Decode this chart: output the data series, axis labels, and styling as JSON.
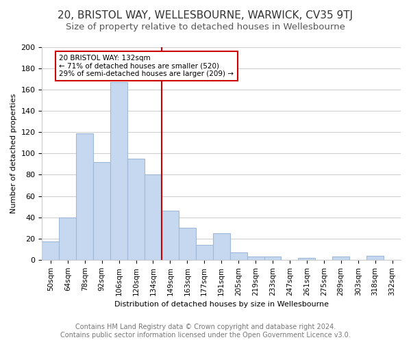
{
  "title": "20, BRISTOL WAY, WELLESBOURNE, WARWICK, CV35 9TJ",
  "subtitle": "Size of property relative to detached houses in Wellesbourne",
  "xlabel": "Distribution of detached houses by size in Wellesbourne",
  "ylabel": "Number of detached properties",
  "bar_labels": [
    "50sqm",
    "64sqm",
    "78sqm",
    "92sqm",
    "106sqm",
    "120sqm",
    "134sqm",
    "149sqm",
    "163sqm",
    "177sqm",
    "191sqm",
    "205sqm",
    "219sqm",
    "233sqm",
    "247sqm",
    "261sqm",
    "275sqm",
    "289sqm",
    "303sqm",
    "318sqm",
    "332sqm"
  ],
  "bar_values": [
    17,
    40,
    119,
    92,
    167,
    95,
    80,
    46,
    30,
    14,
    25,
    7,
    3,
    3,
    0,
    2,
    0,
    3,
    0,
    4,
    0
  ],
  "bar_color": "#c5d8f0",
  "bar_edge_color": "#a0b8d8",
  "vline_color": "#cc0000",
  "annotation_title": "20 BRISTOL WAY: 132sqm",
  "annotation_line1": "← 71% of detached houses are smaller (520)",
  "annotation_line2": "29% of semi-detached houses are larger (209) →",
  "annotation_box_color": "#ffffff",
  "annotation_box_edge": "#cc0000",
  "ylim": [
    0,
    200
  ],
  "yticks": [
    0,
    20,
    40,
    60,
    80,
    100,
    120,
    140,
    160,
    180,
    200
  ],
  "footer_line1": "Contains HM Land Registry data © Crown copyright and database right 2024.",
  "footer_line2": "Contains public sector information licensed under the Open Government Licence v3.0.",
  "title_fontsize": 11,
  "subtitle_fontsize": 9.5,
  "footer_fontsize": 7
}
